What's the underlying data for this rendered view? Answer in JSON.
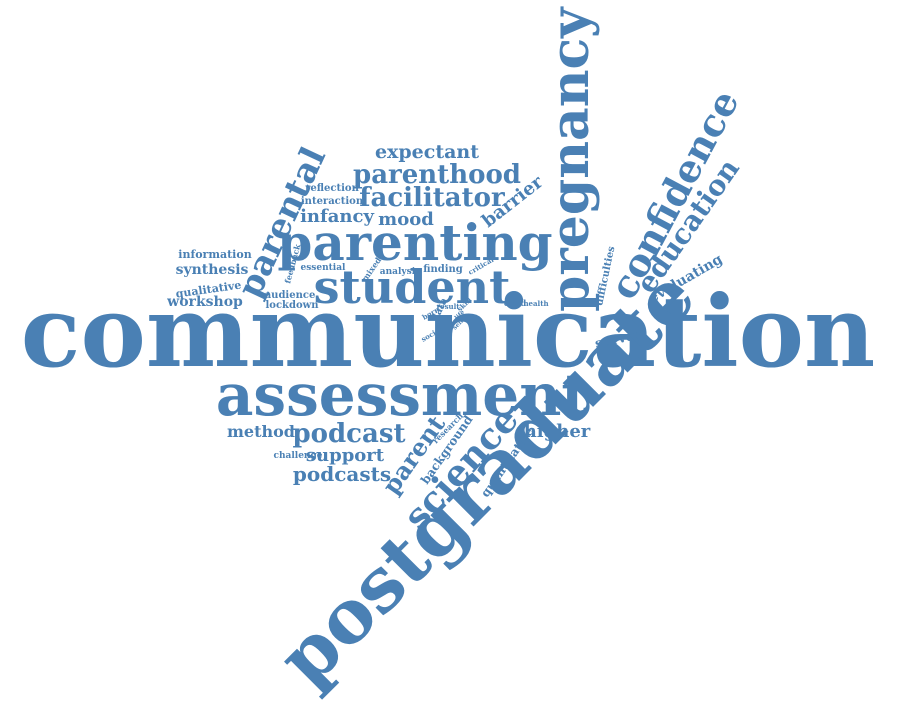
{
  "color": "#4a80b4",
  "words": [
    {
      "id": "communication",
      "text": "communication",
      "weight": 1.0
    },
    {
      "id": "postgraduate",
      "text": "postgraduate",
      "weight": 0.85
    },
    {
      "id": "assessment",
      "text": "assessment",
      "weight": 0.7
    },
    {
      "id": "pregnancy",
      "text": "pregnancy",
      "weight": 0.62
    },
    {
      "id": "parenting",
      "text": "parenting",
      "weight": 0.58
    },
    {
      "id": "student",
      "text": "student",
      "weight": 0.55
    },
    {
      "id": "confidence",
      "text": "confidence",
      "weight": 0.48
    },
    {
      "id": "science",
      "text": "science",
      "weight": 0.45
    },
    {
      "id": "parental",
      "text": "parental",
      "weight": 0.4
    },
    {
      "id": "education",
      "text": "education",
      "weight": 0.36
    },
    {
      "id": "parenthood",
      "text": "parenthood",
      "weight": 0.33
    },
    {
      "id": "facilitator",
      "text": "facilitator",
      "weight": 0.33
    },
    {
      "id": "podcast",
      "text": "podcast",
      "weight": 0.32
    },
    {
      "id": "parent",
      "text": "parent",
      "weight": 0.3
    },
    {
      "id": "expectant",
      "text": "expectant",
      "weight": 0.26
    },
    {
      "id": "podcasts",
      "text": "podcasts",
      "weight": 0.26
    },
    {
      "id": "higher",
      "text": "higher",
      "weight": 0.24
    },
    {
      "id": "infancy",
      "text": "infancy",
      "weight": 0.24
    },
    {
      "id": "mood",
      "text": "mood",
      "weight": 0.24
    },
    {
      "id": "barrier",
      "text": "barrier",
      "weight": 0.22
    },
    {
      "id": "support",
      "text": "support",
      "weight": 0.22
    },
    {
      "id": "method",
      "text": "method",
      "weight": 0.2
    },
    {
      "id": "evaluating",
      "text": "evaluating",
      "weight": 0.18
    },
    {
      "id": "synthesis",
      "text": "synthesis",
      "weight": 0.18
    },
    {
      "id": "workshop",
      "text": "workshop",
      "weight": 0.18
    },
    {
      "id": "survey",
      "text": "survey",
      "weight": 0.16
    },
    {
      "id": "background",
      "text": "background",
      "weight": 0.15
    },
    {
      "id": "quantitative",
      "text": "quantitative",
      "weight": 0.14
    },
    {
      "id": "information",
      "text": "information",
      "weight": 0.14
    },
    {
      "id": "qualitative",
      "text": "qualitative",
      "weight": 0.13
    },
    {
      "id": "difficulties",
      "text": "difficulties",
      "weight": 0.12
    },
    {
      "id": "reflection",
      "text": "reflection",
      "weight": 0.12
    },
    {
      "id": "interaction",
      "text": "interaction",
      "weight": 0.12
    },
    {
      "id": "finding",
      "text": "finding",
      "weight": 0.12
    },
    {
      "id": "audience",
      "text": "audience",
      "weight": 0.12
    },
    {
      "id": "lockdown",
      "text": "lockdown",
      "weight": 0.12
    },
    {
      "id": "essential",
      "text": "essential",
      "weight": 0.11
    },
    {
      "id": "analysis",
      "text": "analysis",
      "weight": 0.11
    },
    {
      "id": "challenge",
      "text": "challenge",
      "weight": 0.1
    },
    {
      "id": "feedback",
      "text": "feedback",
      "weight": 0.1
    },
    {
      "id": "mixed",
      "text": "mixed",
      "weight": 0.1
    },
    {
      "id": "data",
      "text": "data",
      "weight": 0.1
    },
    {
      "id": "research",
      "text": "research",
      "weight": 0.09
    },
    {
      "id": "child",
      "text": "child",
      "weight": 0.09
    },
    {
      "id": "health",
      "text": "health",
      "weight": 0.08
    },
    {
      "id": "critical",
      "text": "critical",
      "weight": 0.08
    },
    {
      "id": "result",
      "text": "result",
      "weight": 0.08
    },
    {
      "id": "skill",
      "text": "skill",
      "weight": 0.07
    },
    {
      "id": "born",
      "text": "born",
      "weight": 0.07
    },
    {
      "id": "social",
      "text": "social",
      "weight": 0.07
    },
    {
      "id": "life",
      "text": "life",
      "weight": 0.06
    },
    {
      "id": "self",
      "text": "self",
      "weight": 0.06
    }
  ]
}
